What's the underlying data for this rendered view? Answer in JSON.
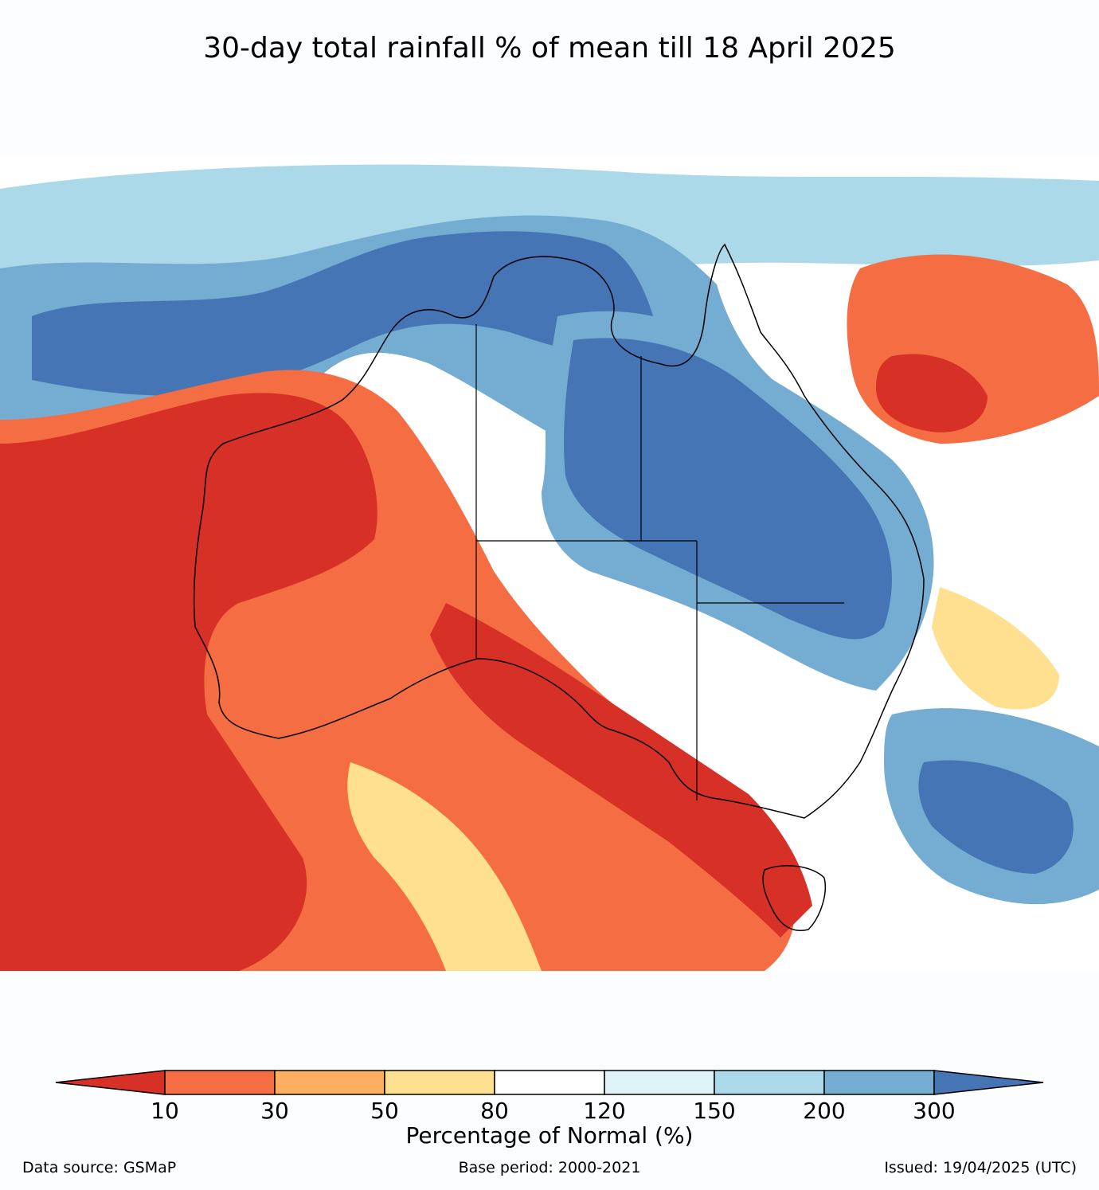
{
  "title": "30-day total rainfall % of mean till 18 April 2025",
  "legend": {
    "label": "Percentage of Normal (%)",
    "ticks": [
      "10",
      "30",
      "50",
      "80",
      "120",
      "150",
      "200",
      "300"
    ],
    "colors": [
      "#d73027",
      "#f46d43",
      "#fdae61",
      "#fee090",
      "#ffffff",
      "#e0f3f8",
      "#abd9e9",
      "#74add1",
      "#4575b4"
    ]
  },
  "footer": {
    "source": "Data source: GSMaP",
    "base_period": "Base period: 2000-2021",
    "issued": "Issued: 19/04/2025 (UTC)"
  }
}
